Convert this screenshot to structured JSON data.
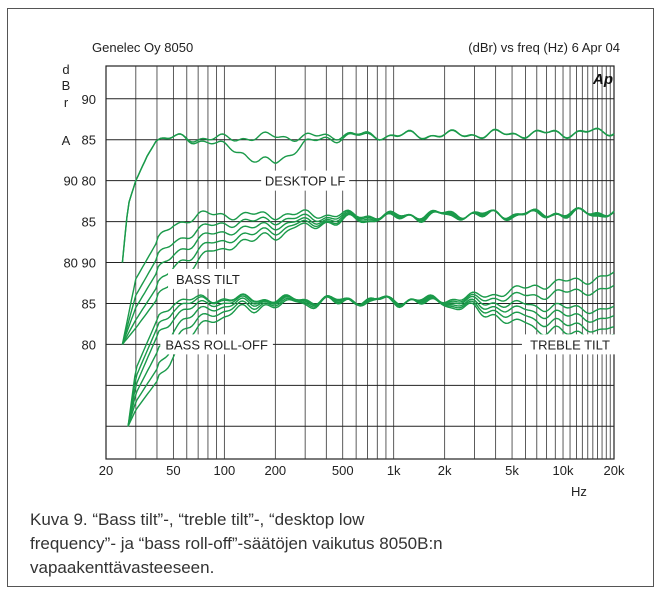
{
  "chart_data": {
    "type": "line",
    "header_left": "Genelec Oy 8050",
    "header_right": "(dBr) vs freq (Hz) 6 Apr 04",
    "logo": "Ap",
    "ylabel_chars": [
      "d",
      "B",
      "r"
    ],
    "ylabel_extra": "A",
    "xlabel": "Hz",
    "xscale": "log",
    "xlim": [
      20,
      20000
    ],
    "x_ticks": [
      {
        "v": 20,
        "label": "20"
      },
      {
        "v": 50,
        "label": "50"
      },
      {
        "v": 100,
        "label": "100"
      },
      {
        "v": 200,
        "label": "200"
      },
      {
        "v": 500,
        "label": "500"
      },
      {
        "v": 1000,
        "label": "1k"
      },
      {
        "v": 2000,
        "label": "2k"
      },
      {
        "v": 5000,
        "label": "5k"
      },
      {
        "v": 10000,
        "label": "10k"
      },
      {
        "v": 20000,
        "label": "20k"
      }
    ],
    "grid": true,
    "line_color": "#1a9a4a",
    "y_tick_labels": [
      {
        "level": 90,
        "label": "90"
      },
      {
        "level": 85,
        "label": "85"
      },
      {
        "level": 80,
        "label": "90 80"
      },
      {
        "level": 75,
        "label": "85"
      },
      {
        "level": 70,
        "label": "80 90"
      },
      {
        "level": 65,
        "label": "85"
      },
      {
        "level": 60,
        "label": "80"
      }
    ],
    "y_level_range": [
      46,
      94
    ],
    "annotations": [
      {
        "text": "DESKTOP LF",
        "x": 300,
        "level": 80
      },
      {
        "text": "BASS TILT",
        "x": 80,
        "level": 68
      },
      {
        "text": "BASS ROLL-OFF",
        "x": 90,
        "level": 60
      },
      {
        "text": "TREBLE TILT",
        "x": 11000,
        "level": 60
      }
    ],
    "groups": [
      {
        "name": "DESKTOP LF",
        "series": [
          {
            "x": [
              25,
              27,
              30,
              35,
              40,
              50,
              70,
              100,
              150,
              200,
              300,
              500,
              1000,
              2000,
              5000,
              10000,
              15000,
              20000
            ],
            "y": [
              70,
              77,
              80,
              83,
              85,
              85.2,
              85.2,
              85.1,
              85.3,
              85.4,
              85.3,
              85.6,
              85.5,
              85.6,
              85.7,
              85.8,
              85.9,
              86
            ]
          },
          {
            "x": [
              25,
              27,
              30,
              35,
              40,
              50,
              70,
              100,
              130,
              160,
              200,
              250,
              300,
              500,
              1000,
              2000,
              5000,
              10000,
              20000
            ],
            "y": [
              70,
              77,
              80,
              83,
              85,
              85.2,
              85,
              84.2,
              83.4,
              82.3,
              82.2,
              83.5,
              84.6,
              85.4,
              85.5,
              85.6,
              85.7,
              85.8,
              86
            ]
          }
        ]
      },
      {
        "name": "BASS TILT",
        "series": [
          {
            "x": [
              25,
              30,
              40,
              50,
              70,
              100,
              200,
              300,
              500,
              1000,
              2000,
              5000,
              10000,
              20000
            ],
            "y": [
              60,
              68,
              72.5,
              74.6,
              75.8,
              75.8,
              75.8,
              75.9,
              75.8,
              75.7,
              76,
              75.9,
              76,
              76.2
            ]
          },
          {
            "x": [
              25,
              30,
              40,
              50,
              70,
              100,
              200,
              300,
              500,
              1000,
              2000,
              5000,
              10000,
              20000
            ],
            "y": [
              60,
              66,
              70.5,
              72.5,
              74,
              74.8,
              75.2,
              75.4,
              75.6,
              75.7,
              75.9,
              75.9,
              76,
              76.1
            ]
          },
          {
            "x": [
              25,
              30,
              40,
              50,
              70,
              100,
              200,
              300,
              500,
              1000,
              2000,
              5000,
              10000,
              20000
            ],
            "y": [
              60,
              64.5,
              68.8,
              71,
              72.8,
              73.8,
              74.6,
              75,
              75.4,
              75.6,
              75.8,
              75.9,
              76,
              76.1
            ]
          },
          {
            "x": [
              25,
              30,
              40,
              50,
              70,
              100,
              200,
              300,
              500,
              1000,
              2000,
              5000,
              10000,
              20000
            ],
            "y": [
              60,
              63,
              67,
              69.5,
              71.5,
              72.8,
              74,
              74.7,
              75.2,
              75.5,
              75.8,
              75.8,
              75.9,
              76
            ]
          },
          {
            "x": [
              25,
              30,
              40,
              50,
              70,
              100,
              200,
              300,
              500,
              1000,
              2000,
              5000,
              10000,
              20000
            ],
            "y": [
              60,
              62,
              65.5,
              68,
              70.3,
              71.9,
              73.4,
              74.4,
              75.1,
              75.5,
              75.7,
              75.8,
              75.9,
              76
            ]
          }
        ]
      },
      {
        "name": "BASS ROLL-OFF / TREBLE TILT",
        "series": [
          {
            "x": [
              27,
              30,
              40,
              50,
              70,
              100,
              200,
              500,
              1000,
              2000,
              3000,
              5000,
              7000,
              10000,
              15000,
              20000
            ],
            "y": [
              50,
              57,
              63,
              65.3,
              65.5,
              65.6,
              65.5,
              65.4,
              65.4,
              65.5,
              65.8,
              66.5,
              67.2,
              67.6,
              68,
              68.5
            ]
          },
          {
            "x": [
              27,
              30,
              40,
              50,
              70,
              100,
              200,
              500,
              1000,
              2000,
              3000,
              5000,
              7000,
              10000,
              15000,
              20000
            ],
            "y": [
              50,
              56,
              62,
              64.5,
              65.3,
              65.5,
              65.5,
              65.4,
              65.4,
              65.4,
              65.5,
              65.8,
              66,
              66.3,
              66.6,
              66.8
            ]
          },
          {
            "x": [
              27,
              30,
              40,
              50,
              70,
              100,
              200,
              500,
              1000,
              2000,
              3000,
              5000,
              7000,
              10000,
              15000,
              20000
            ],
            "y": [
              50,
              55,
              61,
              63.5,
              64.8,
              65.2,
              65.4,
              65.4,
              65.4,
              65.3,
              65.2,
              64.9,
              64.7,
              64.5,
              64.3,
              64.2
            ]
          },
          {
            "x": [
              27,
              30,
              40,
              50,
              70,
              100,
              200,
              500,
              1000,
              2000,
              3000,
              5000,
              7000,
              10000,
              15000,
              20000
            ],
            "y": [
              50,
              54,
              59,
              62,
              64,
              64.8,
              65.3,
              65.4,
              65.4,
              65.2,
              64.8,
              64.3,
              63.9,
              63.6,
              63.2,
              63
            ]
          },
          {
            "x": [
              27,
              30,
              40,
              50,
              70,
              100,
              200,
              500,
              1000,
              2000,
              3000,
              5000,
              7000,
              10000,
              15000,
              20000
            ],
            "y": [
              50,
              53,
              57,
              60.5,
              63,
              64.3,
              65.1,
              65.3,
              65.3,
              65.1,
              64.5,
              63.6,
              63,
              62.5,
              62,
              61.6
            ]
          },
          {
            "x": [
              27,
              30,
              40,
              50,
              70,
              100,
              200,
              500,
              1000,
              2000,
              3000,
              5000,
              7000,
              10000,
              15000,
              20000
            ],
            "y": [
              50,
              52,
              55.5,
              59,
              62,
              63.7,
              64.9,
              65.2,
              65.3,
              65,
              64.2,
              62.8,
              62,
              61.5,
              61,
              60.6
            ]
          }
        ]
      }
    ]
  },
  "caption": {
    "line1": "Kuva 9. “Bass tilt”-, “treble tilt”-, “desktop low",
    "line2": "frequency”- ja “bass roll-off”-säätöjen vaikutus 8050B:n",
    "line3": "vapaakenttävasteeseen."
  }
}
